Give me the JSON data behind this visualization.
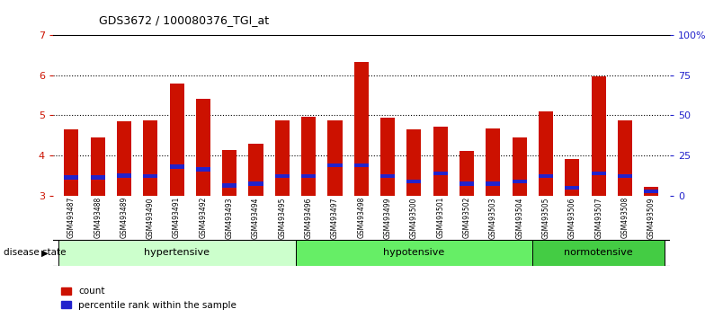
{
  "title": "GDS3672 / 100080376_TGI_at",
  "samples": [
    "GSM493487",
    "GSM493488",
    "GSM493489",
    "GSM493490",
    "GSM493491",
    "GSM493492",
    "GSM493493",
    "GSM493494",
    "GSM493495",
    "GSM493496",
    "GSM493497",
    "GSM493498",
    "GSM493499",
    "GSM493500",
    "GSM493501",
    "GSM493502",
    "GSM493503",
    "GSM493504",
    "GSM493505",
    "GSM493506",
    "GSM493507",
    "GSM493508",
    "GSM493509"
  ],
  "count_values": [
    4.65,
    4.45,
    4.85,
    4.88,
    5.78,
    5.42,
    4.13,
    4.3,
    4.87,
    4.97,
    4.87,
    6.32,
    4.93,
    4.65,
    4.72,
    4.12,
    4.68,
    4.45,
    5.1,
    3.9,
    5.97,
    4.87,
    3.22
  ],
  "percentile_values": [
    3.45,
    3.45,
    3.5,
    3.48,
    3.72,
    3.65,
    3.25,
    3.3,
    3.48,
    3.48,
    3.75,
    3.75,
    3.48,
    3.35,
    3.55,
    3.3,
    3.3,
    3.35,
    3.48,
    3.2,
    3.55,
    3.48,
    3.1
  ],
  "groups": [
    {
      "label": "hypertensive",
      "start": 0,
      "end": 9,
      "color": "#ccffcc"
    },
    {
      "label": "hypotensive",
      "start": 9,
      "end": 18,
      "color": "#66ee66"
    },
    {
      "label": "normotensive",
      "start": 18,
      "end": 23,
      "color": "#44cc44"
    }
  ],
  "ylim_left": [
    3,
    7
  ],
  "ylim_right": [
    0,
    100
  ],
  "yticks_left": [
    3,
    4,
    5,
    6,
    7
  ],
  "yticks_right": [
    0,
    25,
    50,
    75,
    100
  ],
  "bar_color": "#cc1100",
  "percentile_color": "#2222cc",
  "bar_width": 0.55,
  "background_color": "#ffffff",
  "plot_bg_color": "#ffffff",
  "tick_area_color": "#dddddd",
  "axis_color_left": "#cc1100",
  "axis_color_right": "#2222cc",
  "grid_color": "#000000",
  "legend_count_label": "count",
  "legend_percentile_label": "percentile rank within the sample",
  "disease_state_label": "disease state"
}
